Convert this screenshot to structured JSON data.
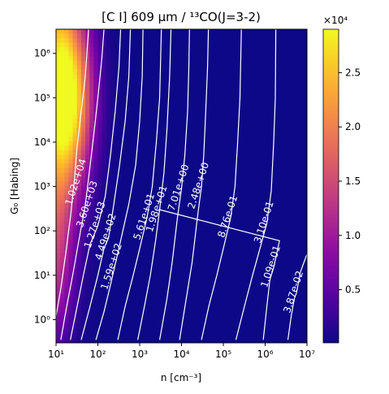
{
  "chart_data": {
    "type": "heatmap",
    "title": "[C I] 609 μm / ¹³CO(J=3-2)",
    "xlabel": "n [cm⁻³]",
    "ylabel": "G₀ [Habing]",
    "xscale": "log",
    "yscale": "log",
    "xlim": [
      10,
      10000000
    ],
    "ylim": [
      0.3,
      3500000
    ],
    "x_ticks": [
      {
        "value": 10,
        "label": "10¹"
      },
      {
        "value": 100,
        "label": "10²"
      },
      {
        "value": 1000,
        "label": "10³"
      },
      {
        "value": 10000,
        "label": "10⁴"
      },
      {
        "value": 100000,
        "label": "10⁵"
      },
      {
        "value": 1000000,
        "label": "10⁶"
      },
      {
        "value": 10000000,
        "label": "10⁷"
      }
    ],
    "y_ticks": [
      {
        "value": 1,
        "label": "10⁰"
      },
      {
        "value": 10,
        "label": "10¹"
      },
      {
        "value": 100,
        "label": "10²"
      },
      {
        "value": 1000,
        "label": "10³"
      },
      {
        "value": 10000,
        "label": "10⁴"
      },
      {
        "value": 100000,
        "label": "10⁵"
      },
      {
        "value": 1000000,
        "label": "10⁶"
      }
    ],
    "colorbar": {
      "colormap": "plasma",
      "multiplier": "×10⁴",
      "range": [
        100,
        29000
      ],
      "ticks": [
        {
          "value": 5000,
          "label": "0.5"
        },
        {
          "value": 10000,
          "label": "1.0"
        },
        {
          "value": 15000,
          "label": "1.5"
        },
        {
          "value": 20000,
          "label": "2.0"
        },
        {
          "value": 25000,
          "label": "2.5"
        }
      ]
    },
    "contour_color": "#ffffff",
    "contours": [
      {
        "label": "1.02e+04",
        "label_at": [
          35,
          1200
        ],
        "points": [
          [
            10,
            0.35
          ],
          [
            10,
            1.2
          ],
          [
            13,
            5
          ],
          [
            17,
            30
          ],
          [
            22,
            200
          ],
          [
            27,
            1200
          ],
          [
            32,
            8000
          ],
          [
            40,
            50000
          ],
          [
            50,
            300000
          ],
          [
            60,
            3500000
          ]
        ]
      },
      {
        "label": "3.60e+03",
        "label_at": [
          65,
          380
        ],
        "points": [
          [
            13,
            0.35
          ],
          [
            18,
            2
          ],
          [
            25,
            10
          ],
          [
            35,
            60
          ],
          [
            50,
            380
          ],
          [
            62,
            2000
          ],
          [
            80,
            15000
          ],
          [
            100,
            100000
          ],
          [
            125,
            800000
          ],
          [
            140,
            3500000
          ]
        ]
      },
      {
        "label": "1.27e+03",
        "label_at": [
          100,
          130
        ],
        "points": [
          [
            22,
            0.35
          ],
          [
            32,
            2
          ],
          [
            45,
            10
          ],
          [
            65,
            50
          ],
          [
            100,
            130
          ],
          [
            150,
            600
          ],
          [
            200,
            5000
          ],
          [
            260,
            50000
          ],
          [
            320,
            500000
          ],
          [
            350,
            3500000
          ]
        ]
      },
      {
        "label": "4.49e+02",
        "label_at": [
          180,
          70
        ],
        "points": [
          [
            40,
            0.35
          ],
          [
            65,
            2
          ],
          [
            100,
            10
          ],
          [
            140,
            40
          ],
          [
            180,
            70
          ],
          [
            230,
            300
          ],
          [
            330,
            3000
          ],
          [
            450,
            30000
          ],
          [
            550,
            300000
          ],
          [
            600,
            3500000
          ]
        ]
      },
      {
        "label": "1.59e+02",
        "label_at": [
          250,
          15
        ],
        "points": [
          [
            90,
            0.35
          ],
          [
            140,
            1.5
          ],
          [
            200,
            6
          ],
          [
            250,
            15
          ],
          [
            350,
            60
          ],
          [
            550,
            400
          ],
          [
            800,
            3000
          ],
          [
            1000,
            30000
          ],
          [
            1150,
            300000
          ],
          [
            1200,
            3500000
          ]
        ]
      },
      {
        "label": "5.61e+01",
        "label_at": [
          1500,
          200
        ],
        "points": [
          [
            300,
            0.35
          ],
          [
            450,
            2
          ],
          [
            700,
            10
          ],
          [
            1000,
            40
          ],
          [
            1500,
            200
          ],
          [
            2000,
            1000
          ],
          [
            2500,
            10000
          ],
          [
            3000,
            100000
          ],
          [
            3300,
            3500000
          ]
        ]
      },
      {
        "label": "1.98e+01",
        "label_at": [
          3000,
          300
        ],
        "points": [
          [
            900,
            0.35
          ],
          [
            1300,
            2
          ],
          [
            1800,
            10
          ],
          [
            2400,
            60
          ],
          [
            3000,
            300
          ],
          [
            3800,
            2000
          ],
          [
            4500,
            20000
          ],
          [
            5200,
            300000
          ],
          [
            5600,
            3500000
          ]
        ]
      },
      {
        "label": "7.01e+00",
        "label_at": [
          10000,
          900
        ],
        "points": [
          [
            3000,
            0.35
          ],
          [
            4500,
            3
          ],
          [
            6000,
            20
          ],
          [
            8000,
            200
          ],
          [
            10000,
            900
          ],
          [
            12000,
            5000
          ],
          [
            14000,
            50000
          ],
          [
            15000,
            500000
          ],
          [
            15500,
            3500000
          ]
        ]
      },
      {
        "label": "2.48e+00",
        "label_at": [
          30000,
          1000
        ],
        "points": [
          [
            9000,
            0.35
          ],
          [
            13000,
            3
          ],
          [
            18000,
            20
          ],
          [
            24000,
            200
          ],
          [
            30000,
            1000
          ],
          [
            34000,
            5000
          ],
          [
            38000,
            50000
          ],
          [
            42000,
            500000
          ],
          [
            44000,
            3500000
          ]
        ]
      },
      {
        "label": "8.76e-01",
        "label_at": [
          150000,
          200
        ],
        "points": [
          [
            30000,
            0.35
          ],
          [
            45000,
            2
          ],
          [
            70000,
            10
          ],
          [
            100000,
            40
          ],
          [
            150000,
            200
          ],
          [
            190000,
            1000
          ],
          [
            220000,
            10000
          ],
          [
            250000,
            100000
          ],
          [
            270000,
            3500000
          ]
        ]
      },
      {
        "label": "3.10e-01",
        "label_at": [
          1100000,
          150
        ],
        "points": [
          [
            200000,
            0.35
          ],
          [
            320000,
            2
          ],
          [
            500000,
            10
          ],
          [
            750000,
            40
          ],
          [
            1100000,
            150
          ],
          [
            1400000,
            800
          ],
          [
            1600000,
            10000
          ],
          [
            1750000,
            100000
          ],
          [
            1800000,
            3500000
          ]
        ]
      },
      {
        "label": "1.09e-01",
        "label_at": [
          1600000,
          15
        ],
        "points": [
          [
            900000,
            0.35
          ],
          [
            1100000,
            2
          ],
          [
            1300000,
            8
          ],
          [
            1600000,
            15
          ],
          [
            2200000,
            60
          ],
          [
            3000,
            300
          ]
        ]
      },
      {
        "label": "3.87e-02",
        "label_at": [
          5600000,
          4
        ],
        "points": [
          [
            3500000,
            0.35
          ],
          [
            4200000,
            1.2
          ],
          [
            5000000,
            3
          ],
          [
            5600000,
            4
          ],
          [
            7000000,
            12
          ],
          [
            10000000,
            30
          ]
        ]
      }
    ]
  }
}
